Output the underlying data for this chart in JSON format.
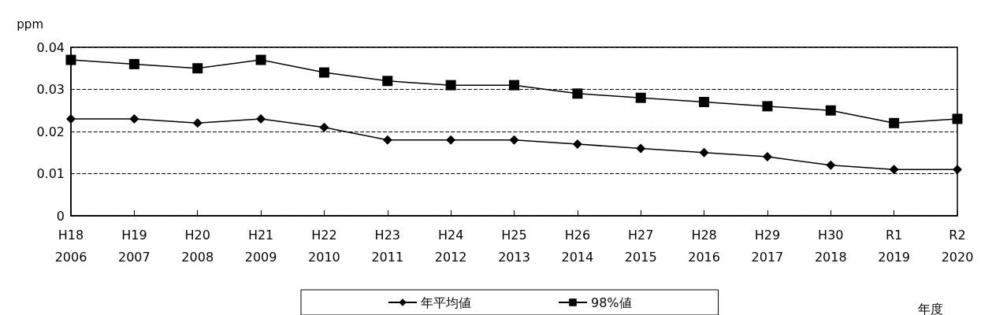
{
  "chart_data": {
    "type": "line",
    "ylabel": "ppm",
    "xlabel": "年度",
    "categories": [
      "H18\n2006",
      "H19\n2007",
      "H20\n2008",
      "H21\n2009",
      "H22\n2010",
      "H23\n2011",
      "H24\n2012",
      "H25\n2013",
      "H26\n2014",
      "H27\n2015",
      "H28\n2016",
      "H29\n2017",
      "H30\n2018",
      "R1\n2019",
      "R2\n2020"
    ],
    "series": [
      {
        "name": "年平均値",
        "color": "#000000",
        "marker": "diamond",
        "values": [
          0.023,
          0.023,
          0.022,
          0.023,
          0.021,
          0.018,
          0.018,
          0.018,
          0.017,
          0.016,
          0.015,
          0.014,
          0.012,
          0.011,
          0.011
        ]
      },
      {
        "name": "98%値",
        "color": "#000000",
        "marker": "square",
        "values": [
          0.037,
          0.036,
          0.035,
          0.037,
          0.034,
          0.032,
          0.031,
          0.031,
          0.029,
          0.028,
          0.027,
          0.026,
          0.025,
          0.022,
          0.023
        ]
      }
    ],
    "ylim": [
      0,
      0.04
    ],
    "yticks": [
      0,
      0.01,
      0.02,
      0.03,
      0.04
    ],
    "grid": "y",
    "legend": "bottom",
    "line_style": "solid"
  }
}
